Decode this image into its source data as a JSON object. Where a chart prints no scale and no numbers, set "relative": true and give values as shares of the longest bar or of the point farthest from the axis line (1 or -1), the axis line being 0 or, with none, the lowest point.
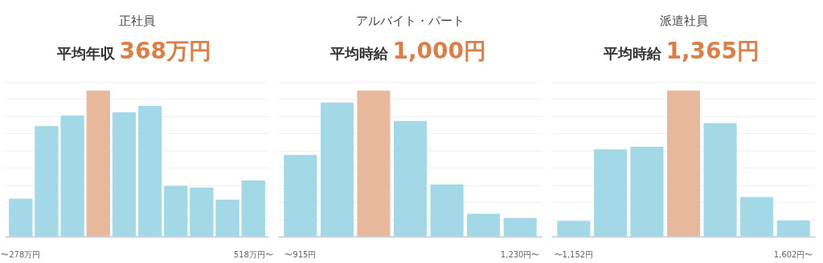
{
  "chart_data": [
    {
      "type": "bar",
      "title": "正社員",
      "subtitle": "平均年収 368万円",
      "relative": true,
      "grid": "y",
      "categories": [
        "〜278万円",
        null,
        null,
        null,
        null,
        null,
        null,
        null,
        null,
        "518万円〜"
      ],
      "values": [
        0.26,
        0.756,
        0.828,
        1,
        0.851,
        0.895,
        0.347,
        0.335,
        0.253,
        0.384
      ],
      "colors": [
        "#a3d8e6",
        "#a3d8e6",
        "#a3d8e6",
        "#e8b89c",
        "#a3d8e6",
        "#a3d8e6",
        "#a3d8e6",
        "#a3d8e6",
        "#a3d8e6",
        "#a3d8e6"
      ]
    },
    {
      "type": "bar",
      "title": "アルバイト・パート",
      "subtitle": "平均時給 1,000円",
      "relative": true,
      "grid": "y",
      "categories": [
        "〜915円",
        null,
        null,
        null,
        null,
        null,
        "1,230円〜"
      ],
      "values": [
        0.559,
        0.918,
        1,
        0.792,
        0.356,
        0.156,
        0.128
      ],
      "colors": [
        "#a3d8e6",
        "#a3d8e6",
        "#e8b89c",
        "#a3d8e6",
        "#a3d8e6",
        "#a3d8e6",
        "#a3d8e6"
      ]
    },
    {
      "type": "bar",
      "title": "派遣社員",
      "subtitle": "平均時給 1,365円",
      "relative": true,
      "grid": "y",
      "categories": [
        "〜1,152円",
        null,
        null,
        null,
        null,
        null,
        "1,602円〜"
      ],
      "values": [
        0.107,
        0.597,
        0.615,
        1,
        0.777,
        0.271,
        0.109
      ],
      "colors": [
        "#a3d8e6",
        "#a3d8e6",
        "#a3d8e6",
        "#e8b89c",
        "#a3d8e6",
        "#a3d8e6",
        "#a3d8e6"
      ]
    }
  ]
}
